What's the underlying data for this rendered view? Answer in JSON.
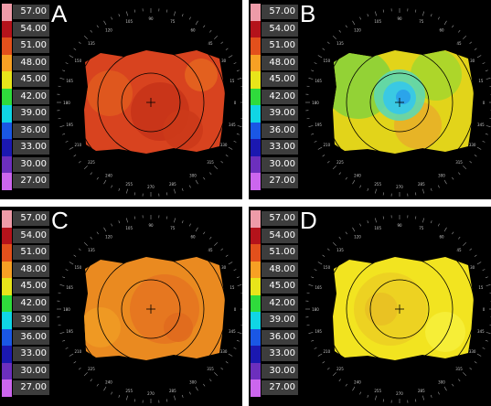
{
  "panels": [
    {
      "letter": "A",
      "base": "#d8431f",
      "patches": [
        {
          "c": "#c83418",
          "dx": 10,
          "dy": 10,
          "r": 32
        },
        {
          "c": "#cc3a1a",
          "dx": 35,
          "dy": 30,
          "r": 22
        },
        {
          "c": "#e05a1e",
          "dx": -45,
          "dy": -10,
          "r": 25
        },
        {
          "c": "#e4641f",
          "dx": 55,
          "dy": -30,
          "r": 18
        }
      ]
    },
    {
      "letter": "B",
      "base": "#e2d41a",
      "patches": [
        {
          "c": "#8bd13a",
          "dx": -45,
          "dy": -20,
          "r": 38
        },
        {
          "c": "#a7d62c",
          "dx": 40,
          "dy": -30,
          "r": 28
        },
        {
          "c": "#e8b028",
          "dx": 20,
          "dy": 25,
          "r": 26
        },
        {
          "c": "#5fd7b0",
          "dx": 0,
          "dy": -8,
          "r": 28
        },
        {
          "c": "#35c8ea",
          "dx": 0,
          "dy": -5,
          "r": 18
        },
        {
          "c": "#2aa0ea",
          "dx": 4,
          "dy": -6,
          "r": 8
        }
      ]
    },
    {
      "letter": "C",
      "base": "#ea8a20",
      "patches": [
        {
          "c": "#e57420",
          "dx": 15,
          "dy": 0,
          "r": 38
        },
        {
          "c": "#ef9a24",
          "dx": -55,
          "dy": 20,
          "r": 22
        },
        {
          "c": "#e06a1e",
          "dx": 30,
          "dy": 20,
          "r": 16
        }
      ]
    },
    {
      "letter": "D",
      "base": "#f2e420",
      "patches": [
        {
          "c": "#eccf22",
          "dx": -10,
          "dy": 0,
          "r": 40
        },
        {
          "c": "#e8c024",
          "dx": -20,
          "dy": 0,
          "r": 18
        },
        {
          "c": "#f6ee3a",
          "dx": 50,
          "dy": 25,
          "r": 22
        }
      ]
    }
  ],
  "scale": {
    "labels": [
      "57.00",
      "54.00",
      "51.00",
      "48.00",
      "45.00",
      "42.00",
      "39.00",
      "36.00",
      "33.00",
      "30.00",
      "27.00"
    ],
    "colors": [
      "#ee9ba8",
      "#b4131b",
      "#e2501c",
      "#f7a024",
      "#e8e51a",
      "#2fdb3c",
      "#10d5e5",
      "#1a57e5",
      "#1b18b0",
      "#6c2fbd",
      "#cc66ee"
    ]
  },
  "angle_labels": [
    "0",
    "15",
    "30",
    "45",
    "60",
    "75",
    "90",
    "105",
    "120",
    "135",
    "150",
    "165",
    "180",
    "195",
    "210",
    "225",
    "240",
    "255",
    "270",
    "285",
    "300",
    "315",
    "330",
    "345"
  ],
  "colors": {
    "ring": "#000000",
    "tick": "#9a9a9a",
    "label": "#c8c8c8"
  }
}
